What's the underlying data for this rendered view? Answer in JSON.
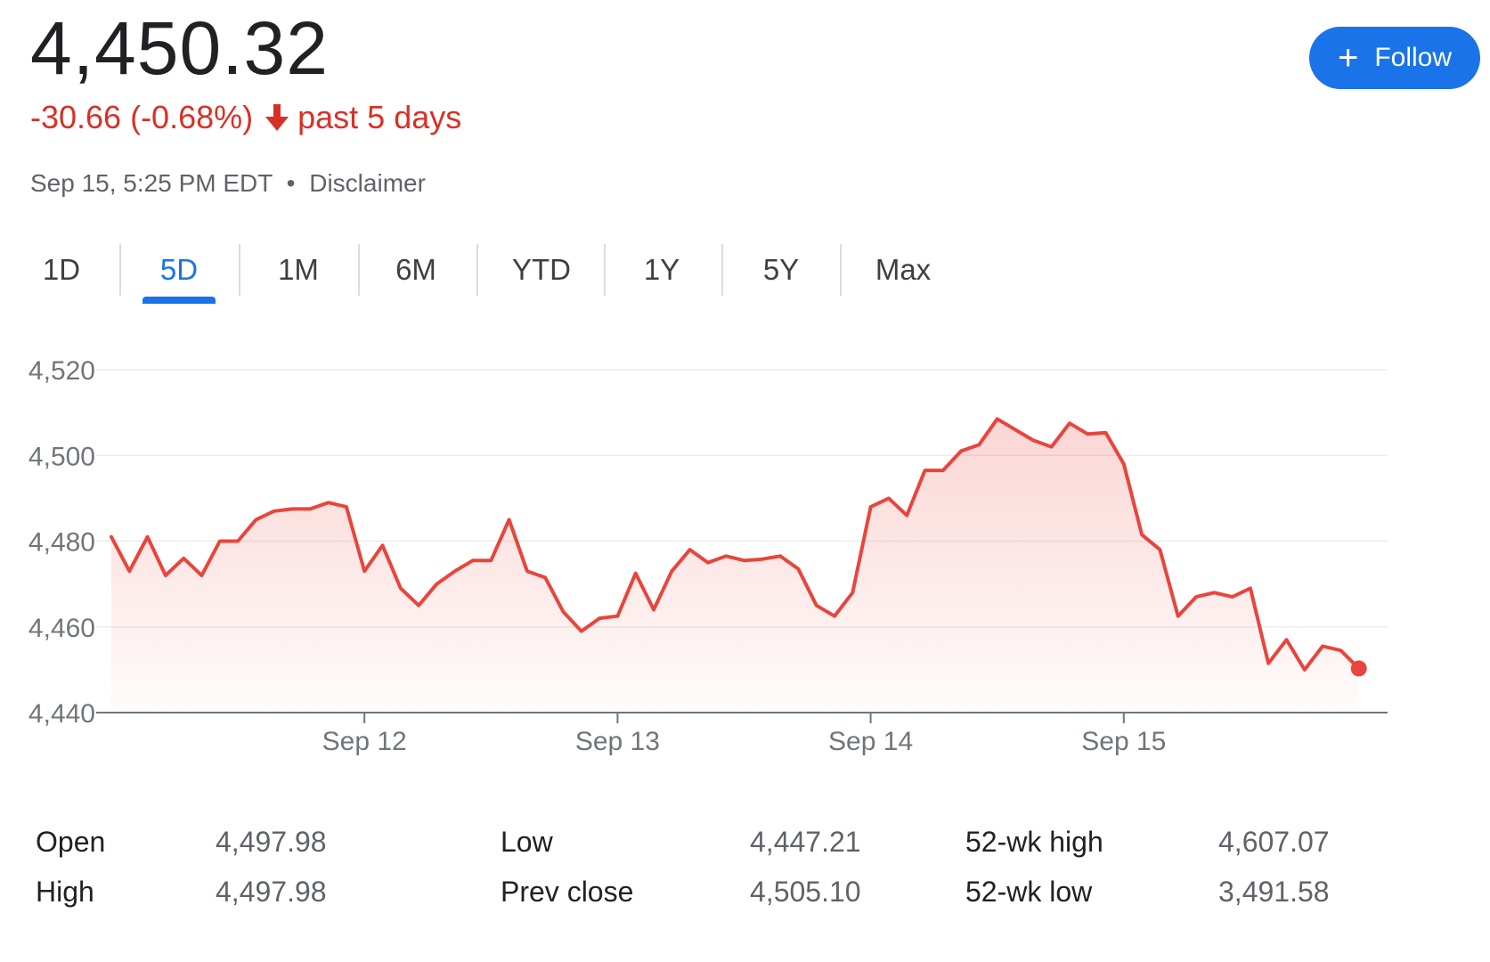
{
  "header": {
    "price": "4,450.32",
    "change": "-30.66 (-0.68%)",
    "change_period": "past 5 days",
    "timestamp": "Sep 15, 5:25 PM EDT",
    "separator": "•",
    "disclaimer": "Disclaimer",
    "follow_label": "Follow"
  },
  "colors": {
    "negative": "#d93025",
    "accent": "#1a73e8",
    "line": "#e8453c"
  },
  "tabs": [
    {
      "label": "1D",
      "active": false
    },
    {
      "label": "5D",
      "active": true
    },
    {
      "label": "1M",
      "active": false
    },
    {
      "label": "6M",
      "active": false
    },
    {
      "label": "YTD",
      "active": false
    },
    {
      "label": "1Y",
      "active": false
    },
    {
      "label": "5Y",
      "active": false
    },
    {
      "label": "Max",
      "active": false
    }
  ],
  "chart_data": {
    "type": "area",
    "title": "",
    "xlabel": "",
    "ylabel": "",
    "x_ticks": [
      "Sep 12",
      "Sep 13",
      "Sep 14",
      "Sep 15"
    ],
    "x_tick_positions": [
      14,
      28,
      42,
      56
    ],
    "y_ticks": [
      "4,520",
      "4,500",
      "4,480",
      "4,460",
      "4,440"
    ],
    "y_tick_values": [
      4520,
      4500,
      4480,
      4460,
      4440
    ],
    "ylim": [
      4440,
      4520
    ],
    "xlim": [
      0,
      70
    ],
    "grid": true,
    "series": [
      {
        "values": [
          4481,
          4473,
          4481,
          4472,
          4476,
          4472,
          4480,
          4480,
          4485,
          4487,
          4487.5,
          4487.5,
          4489,
          4488,
          4473,
          4479,
          4469,
          4465,
          4470,
          4473,
          4475.5,
          4475.5,
          4485,
          4473,
          4471.5,
          4463.5,
          4459,
          4462,
          4462.5,
          4472.5,
          4464,
          4473,
          4478,
          4475,
          4476.5,
          4475.5,
          4475.8,
          4476.5,
          4473.5,
          4465,
          4462.5,
          4468,
          4488,
          4490,
          4486,
          4496.5,
          4496.5,
          4501,
          4502.5,
          4508.5,
          4506,
          4503.5,
          4502,
          4507.5,
          4505,
          4505.3,
          4498,
          4481.5,
          4478,
          4462.5,
          4467,
          4468,
          4467,
          4469,
          4451.5,
          4457,
          4450,
          4455.5,
          4454.5,
          4450.3
        ]
      }
    ]
  },
  "stats": {
    "open_label": "Open",
    "open_value": "4,497.98",
    "high_label": "High",
    "high_value": "4,497.98",
    "low_label": "Low",
    "low_value": "4,447.21",
    "prev_close_label": "Prev close",
    "prev_close_value": "4,505.10",
    "wk52_high_label": "52-wk high",
    "wk52_high_value": "4,607.07",
    "wk52_low_label": "52-wk low",
    "wk52_low_value": "3,491.58"
  }
}
